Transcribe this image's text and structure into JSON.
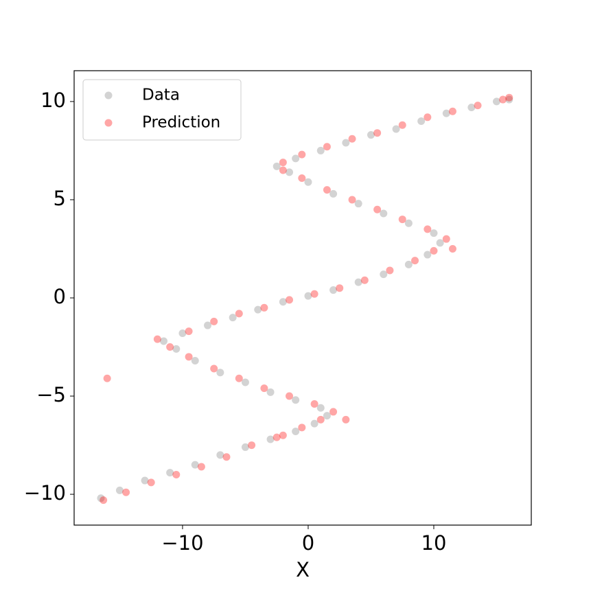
{
  "chart_data": {
    "type": "scatter",
    "x_label": "X",
    "xlim": [
      -18.63,
      17.76
    ],
    "ylim": [
      -11.57,
      11.57
    ],
    "xticks": [
      {
        "value": -10,
        "label": "−10"
      },
      0,
      10
    ],
    "yticks": [
      {
        "value": -10,
        "label": "−10"
      },
      {
        "value": -5,
        "label": "−5"
      },
      0,
      5,
      10
    ],
    "legend": "upper left",
    "series": [
      {
        "name": "Data",
        "color": "#808080",
        "x": [
          -16.5,
          -15,
          -13,
          -11,
          -9,
          -7,
          -5,
          -3,
          -1,
          0.5,
          1.5,
          1,
          -1,
          -3,
          -5,
          -7,
          -9,
          -10.5,
          -11.5,
          -10,
          -8,
          -6,
          -4,
          -2,
          0,
          2,
          4,
          6,
          8,
          9.5,
          10.5,
          10,
          8,
          6,
          4,
          2,
          0,
          -1.5,
          -2.5,
          -1,
          1,
          3,
          5,
          7,
          9,
          11,
          13,
          15,
          16
        ],
        "values": [
          -10.2,
          -9.8,
          -9.3,
          -8.9,
          -8.5,
          -8,
          -7.6,
          -7.2,
          -6.8,
          -6.4,
          -6,
          -5.6,
          -5.2,
          -4.8,
          -4.3,
          -3.8,
          -3.2,
          -2.6,
          -2.2,
          -1.8,
          -1.4,
          -1,
          -0.6,
          -0.2,
          0.1,
          0.4,
          0.8,
          1.2,
          1.7,
          2.2,
          2.8,
          3.3,
          3.8,
          4.3,
          4.8,
          5.3,
          5.9,
          6.4,
          6.7,
          7.1,
          7.5,
          7.9,
          8.3,
          8.6,
          9,
          9.4,
          9.7,
          10,
          10.1
        ]
      },
      {
        "name": "Prediction",
        "color": "#ff0000",
        "x": [
          -16.3,
          -14.5,
          -12.5,
          -10.5,
          -8.5,
          -6.5,
          -4.5,
          -2.5,
          -0.5,
          1,
          2,
          0.5,
          -1.5,
          -3.5,
          -5.5,
          -7.5,
          -9.5,
          -11,
          -12,
          -9.5,
          -7.5,
          -5.5,
          -3.5,
          -1.5,
          0.5,
          2.5,
          4.5,
          6.5,
          8.5,
          10,
          11,
          9.5,
          7.5,
          5.5,
          3.5,
          1.5,
          -0.5,
          -2,
          -2,
          -0.5,
          1.5,
          3.5,
          5.5,
          7.5,
          9.5,
          11.5,
          13.5,
          15.5,
          16,
          -16,
          3,
          -2,
          11.5
        ],
        "values": [
          -10.3,
          -9.9,
          -9.4,
          -9,
          -8.6,
          -8.1,
          -7.5,
          -7.1,
          -6.6,
          -6.2,
          -5.8,
          -5.4,
          -5,
          -4.6,
          -4.1,
          -3.6,
          -3,
          -2.5,
          -2.1,
          -1.7,
          -1.2,
          -0.8,
          -0.5,
          -0.1,
          0.2,
          0.5,
          0.9,
          1.4,
          1.9,
          2.4,
          3,
          3.5,
          4,
          4.5,
          5,
          5.5,
          6.1,
          6.5,
          6.9,
          7.3,
          7.7,
          8.1,
          8.4,
          8.8,
          9.2,
          9.5,
          9.8,
          10.1,
          10.2,
          -4.1,
          -6.2,
          -7,
          2.5
        ]
      }
    ]
  }
}
